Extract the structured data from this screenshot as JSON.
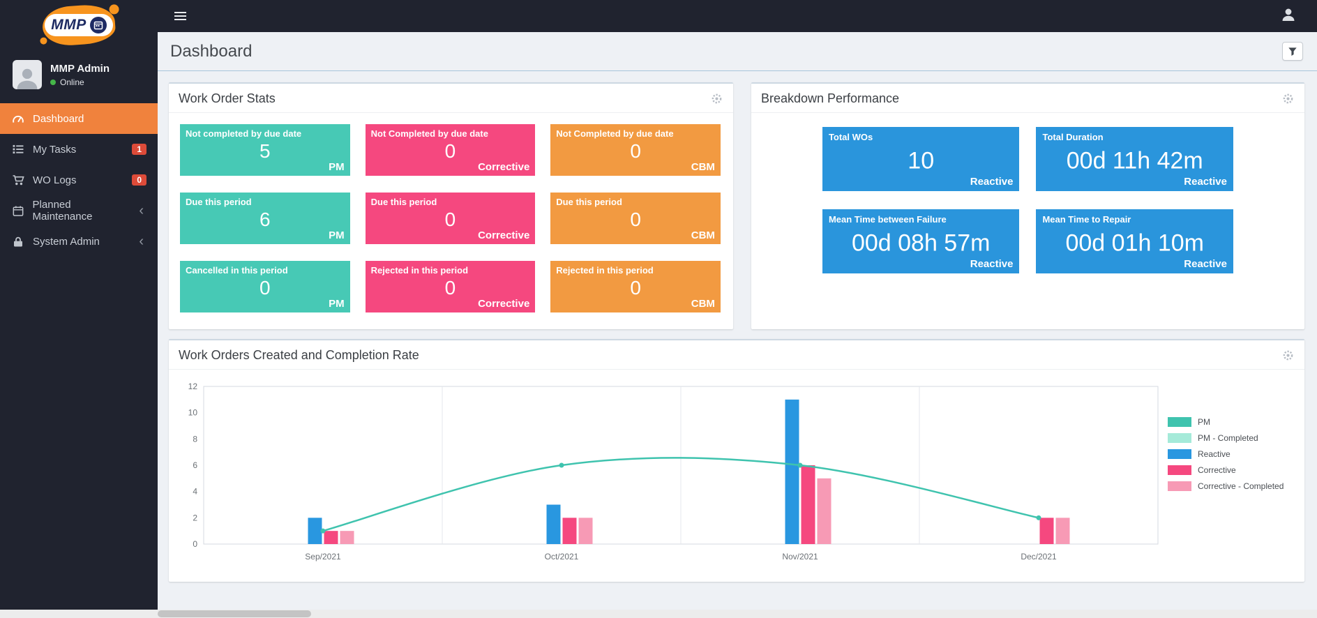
{
  "colors": {
    "teal": "#47c9b5",
    "teal_light": "#a5ead9",
    "pink": "#f5487f",
    "pink_light": "#f79ab5",
    "orange": "#f29a41",
    "blue": "#2a95dc",
    "active_menu_orange": "#f0823d",
    "badge_red": "#dd4b39",
    "sidebar_bg": "#20232f",
    "online_green": "#45b649"
  },
  "icons": {
    "hamburger-icon": "three horizontal bars",
    "user-icon": "person silhouette",
    "gear-icon": "settings gear",
    "filter-icon": "funnel",
    "chevron-left-icon": "‹",
    "online-dot": "green circle",
    "gauge-icon": "dashboard tachometer",
    "tasks-icon": "list with squares",
    "cart-icon": "shopping cart",
    "calendar-icon": "calendar",
    "lock-icon": "padlock"
  },
  "sidebar": {
    "logo_text": "MMP",
    "user": {
      "name": "MMP Admin",
      "status": "Online"
    },
    "items": [
      {
        "label": "Dashboard",
        "icon": "gauge-icon",
        "active": true
      },
      {
        "label": "My Tasks",
        "icon": "tasks-icon",
        "badge": "1"
      },
      {
        "label": "WO Logs",
        "icon": "cart-icon",
        "badge": "0"
      },
      {
        "label": "Planned Maintenance",
        "icon": "calendar-icon",
        "chevron": "‹"
      },
      {
        "label": "System Admin",
        "icon": "lock-icon",
        "chevron": "‹"
      }
    ]
  },
  "page": {
    "title": "Dashboard"
  },
  "work_order_stats": {
    "title": "Work Order Stats",
    "boxes": [
      {
        "label": "Not completed by due date",
        "value": "5",
        "tag": "PM",
        "color": "teal"
      },
      {
        "label": "Not Completed by due date",
        "value": "0",
        "tag": "Corrective",
        "color": "pink"
      },
      {
        "label": "Not Completed by due date",
        "value": "0",
        "tag": "CBM",
        "color": "orange"
      },
      {
        "label": "Due this period",
        "value": "6",
        "tag": "PM",
        "color": "teal"
      },
      {
        "label": "Due this period",
        "value": "0",
        "tag": "Corrective",
        "color": "pink"
      },
      {
        "label": "Due this period",
        "value": "0",
        "tag": "CBM",
        "color": "orange"
      },
      {
        "label": "Cancelled in this period",
        "value": "0",
        "tag": "PM",
        "color": "teal"
      },
      {
        "label": "Rejected in this period",
        "value": "0",
        "tag": "Corrective",
        "color": "pink"
      },
      {
        "label": "Rejected in this period",
        "value": "0",
        "tag": "CBM",
        "color": "orange"
      }
    ]
  },
  "breakdown_performance": {
    "title": "Breakdown Performance",
    "boxes": [
      {
        "label": "Total WOs",
        "value": "10",
        "tag": "Reactive"
      },
      {
        "label": "Total Duration",
        "value": "00d 11h 42m",
        "tag": "Reactive"
      },
      {
        "label": "Mean Time between Failure",
        "value": "00d 08h 57m",
        "tag": "Reactive"
      },
      {
        "label": "Mean Time to Repair",
        "value": "00d 01h 10m",
        "tag": "Reactive"
      }
    ]
  },
  "chart_panel": {
    "title": "Work Orders Created and Completion Rate"
  },
  "chart_data": {
    "type": "bar",
    "title": "Work Orders Created and Completion Rate",
    "categories": [
      "Sep/2021",
      "Oct/2021",
      "Nov/2021",
      "Dec/2021"
    ],
    "series": [
      {
        "name": "PM",
        "type": "line",
        "color": "#3fc3ae",
        "values": [
          1,
          6,
          6,
          2
        ]
      },
      {
        "name": "PM - Completed",
        "type": "bar",
        "color": "#a5ead9",
        "values": [
          0,
          0,
          0,
          0
        ]
      },
      {
        "name": "Reactive",
        "type": "bar",
        "color": "#2997e0",
        "values": [
          2,
          3,
          11,
          0
        ]
      },
      {
        "name": "Corrective",
        "type": "bar",
        "color": "#f5487f",
        "values": [
          1,
          2,
          6,
          2
        ]
      },
      {
        "name": "Corrective - Completed",
        "type": "bar",
        "color": "#f79ab5",
        "values": [
          1,
          2,
          5,
          2
        ]
      }
    ],
    "xlabel": "",
    "ylabel": "",
    "ylim": [
      0,
      12
    ],
    "yticks": [
      0,
      2,
      4,
      6,
      8,
      10,
      12
    ],
    "legend_position": "right",
    "grid": "vertical-only"
  }
}
